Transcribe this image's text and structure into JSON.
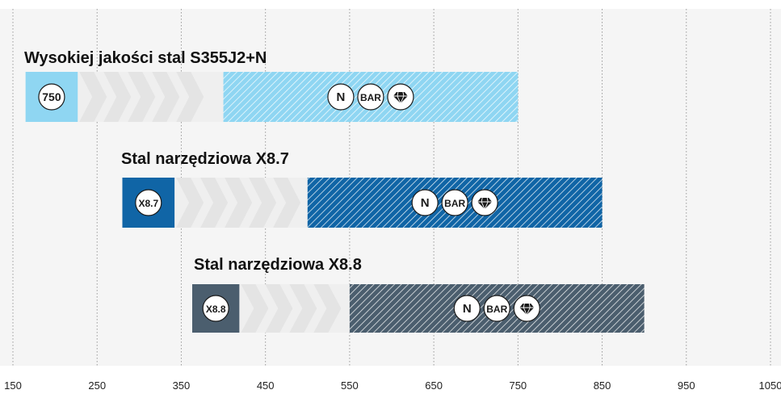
{
  "chart_data": {
    "type": "bar",
    "orientation": "horizontal",
    "x_ticks": [
      150,
      250,
      350,
      450,
      550,
      650,
      750,
      850,
      950,
      "1050"
    ],
    "xlim": [
      150,
      1050
    ],
    "grid": "vertical dotted",
    "series": [
      {
        "title": "Wysokiej jakości stal S355J2+N",
        "badge": "750",
        "start": 165,
        "badge_end": 227,
        "range": [
          400,
          750
        ],
        "icons": [
          "N",
          "BAR",
          "diamond-icon"
        ],
        "color": "#8fd6f2",
        "hatch_line": "#ffffff"
      },
      {
        "title": "Stal narzędziowa X8.7",
        "badge": "X8.7",
        "start": 280,
        "badge_end": 342,
        "range": [
          500,
          850
        ],
        "icons": [
          "N",
          "BAR",
          "diamond-icon"
        ],
        "color": "#1065a6",
        "hatch_line": "#ffffff"
      },
      {
        "title": "Stal narzędziowa X8.8",
        "badge": "X8.8",
        "start": 363,
        "badge_end": 419,
        "range": [
          550,
          900
        ],
        "icons": [
          "N",
          "BAR",
          "diamond-icon"
        ],
        "color": "#4b5e6e",
        "hatch_line": "#ffffff"
      }
    ]
  }
}
